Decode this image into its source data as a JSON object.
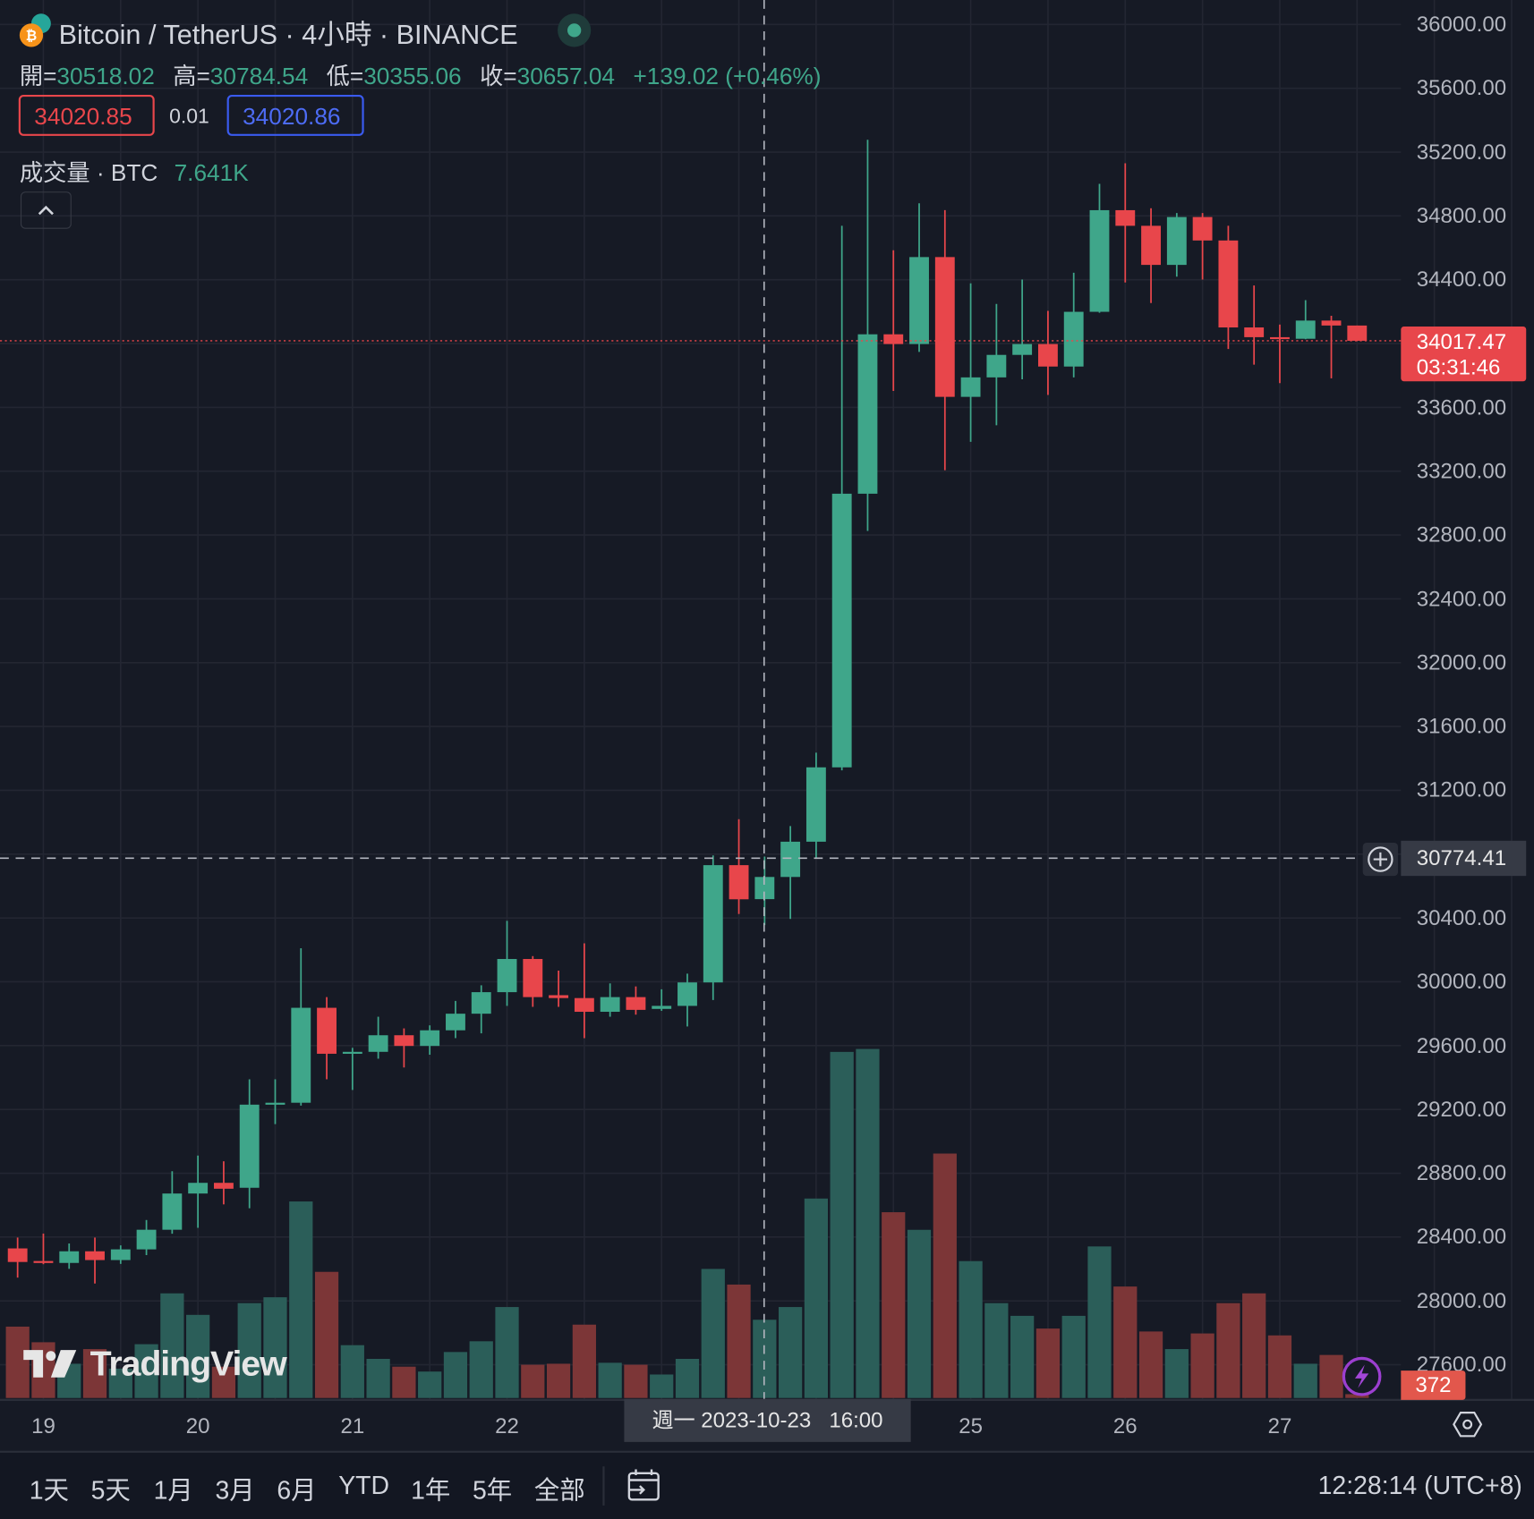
{
  "header": {
    "symbol_title": "Bitcoin / TetherUS · 4小時 · BINANCE",
    "market_status_color": "#26a69a",
    "ohlc": {
      "open_label": "開=",
      "open": "30518.02",
      "high_label": "高=",
      "high": "30784.54",
      "low_label": "低=",
      "low": "30355.06",
      "close_label": "收=",
      "close": "30657.04",
      "change": "+139.02 (+0.46%)"
    },
    "sell_price": "34020.85",
    "spread": "0.01",
    "buy_price": "34020.86",
    "volume_label": "成交量 · BTC",
    "volume_value": "7.641K"
  },
  "colors": {
    "up": "#3fa68a",
    "down": "#e8464b",
    "up_volume": "#2b5e59",
    "down_volume": "#7c3637",
    "background": "#161a25",
    "grid": "#232632",
    "buy": "#3a5bf0",
    "sell": "#e8464b"
  },
  "price_axis": {
    "ticks": [
      "36000.00",
      "35600.00",
      "35200.00",
      "34800.00",
      "34400.00",
      "33600.00",
      "33200.00",
      "32800.00",
      "32400.00",
      "32000.00",
      "31600.00",
      "31200.00",
      "30400.00",
      "30000.00",
      "29600.00",
      "29200.00",
      "28800.00",
      "28400.00",
      "28000.00",
      "27600.00"
    ],
    "last_price": "34017.47",
    "countdown": "03:31:46",
    "crosshair_price": "30774.41",
    "last_volume": "372"
  },
  "time_axis": {
    "labels": [
      {
        "text": "19",
        "index": 1
      },
      {
        "text": "20",
        "index": 7
      },
      {
        "text": "21",
        "index": 13
      },
      {
        "text": "22",
        "index": 19
      },
      {
        "text": "25",
        "index": 37
      },
      {
        "text": "26",
        "index": 43
      },
      {
        "text": "27",
        "index": 49
      }
    ],
    "crosshair_label": "週一 2023-10-23   16:00",
    "crosshair_index": 29
  },
  "chart_data": {
    "type": "candlestick",
    "interval": "4h",
    "first_bar": "2023-10-18 20:00",
    "ylim": [
      27600,
      36000
    ],
    "grid": true,
    "candles": [
      [
        28329,
        28397,
        28146,
        28244
      ],
      [
        28250,
        28422,
        28230,
        28238
      ],
      [
        28238,
        28360,
        28201,
        28311
      ],
      [
        28311,
        28397,
        28109,
        28256
      ],
      [
        28256,
        28348,
        28232,
        28323
      ],
      [
        28323,
        28507,
        28287,
        28446
      ],
      [
        28446,
        28813,
        28421,
        28673
      ],
      [
        28673,
        28911,
        28458,
        28740
      ],
      [
        28740,
        28875,
        28605,
        28703
      ],
      [
        28709,
        29389,
        28581,
        29230
      ],
      [
        29230,
        29389,
        29108,
        29242
      ],
      [
        29242,
        30210,
        29224,
        29837
      ],
      [
        29837,
        29904,
        29389,
        29549
      ],
      [
        29549,
        29586,
        29322,
        29561
      ],
      [
        29561,
        29781,
        29518,
        29665
      ],
      [
        29665,
        29708,
        29463,
        29598
      ],
      [
        29598,
        29727,
        29543,
        29696
      ],
      [
        29696,
        29880,
        29647,
        29800
      ],
      [
        29800,
        29978,
        29677,
        29935
      ],
      [
        29935,
        30382,
        29849,
        30143
      ],
      [
        30143,
        30161,
        29843,
        29904
      ],
      [
        29916,
        30070,
        29843,
        29898
      ],
      [
        29898,
        30241,
        29647,
        29812
      ],
      [
        29812,
        29990,
        29781,
        29904
      ],
      [
        29904,
        29971,
        29794,
        29824
      ],
      [
        29830,
        29953,
        29818,
        29849
      ],
      [
        29849,
        30051,
        29720,
        29996
      ],
      [
        29996,
        30792,
        29886,
        30731
      ],
      [
        30731,
        31019,
        30425,
        30517
      ],
      [
        30518.02,
        30784.54,
        30355.06,
        30657.04
      ],
      [
        30657,
        30976,
        30394,
        30878
      ],
      [
        30878,
        31436,
        30774,
        31344
      ],
      [
        31344,
        34738,
        31325,
        33059
      ],
      [
        33059,
        35277,
        32826,
        34058
      ],
      [
        34058,
        34585,
        33703,
        33997
      ],
      [
        33997,
        34879,
        33948,
        34542
      ],
      [
        34542,
        34836,
        33206,
        33666
      ],
      [
        33666,
        34377,
        33384,
        33788
      ],
      [
        33788,
        34248,
        33488,
        33929
      ],
      [
        33929,
        34401,
        33776,
        33997
      ],
      [
        33997,
        34205,
        33678,
        33856
      ],
      [
        33856,
        34444,
        33788,
        34199
      ],
      [
        34199,
        35001,
        34193,
        34836
      ],
      [
        34836,
        35130,
        34383,
        34738
      ],
      [
        34738,
        34848,
        34254,
        34493
      ],
      [
        34493,
        34818,
        34419,
        34793
      ],
      [
        34793,
        34818,
        34401,
        34646
      ],
      [
        34646,
        34738,
        33966,
        34101
      ],
      [
        34101,
        34364,
        33868,
        34040
      ],
      [
        34040,
        34119,
        33752,
        34030
      ],
      [
        34030,
        34272,
        34027,
        34144
      ],
      [
        34144,
        34174,
        33782,
        34113
      ],
      [
        34113,
        34113,
        34015,
        34017.47
      ]
    ],
    "volumes": [
      6970,
      5444,
      3343,
      4775,
      2865,
      5253,
      10219,
      8118,
      3056,
      9264,
      9837,
      19196,
      12320,
      5157,
      3820,
      3056,
      2579,
      4489,
      5539,
      8882,
      3247,
      3343,
      7163,
      3438,
      3247,
      2292,
      3820,
      12606,
      11078,
      7641,
      8882,
      19482,
      33807,
      34094,
      18145,
      16426,
      23875,
      13370,
      9264,
      8022,
      6781,
      8022,
      14803,
      10887,
      6494,
      4775,
      6303,
      9264,
      10219,
      6112,
      3343,
      4202,
      372
    ]
  },
  "bottom_toolbar": {
    "ranges": [
      "1天",
      "5天",
      "1月",
      "3月",
      "6月",
      "YTD",
      "1年",
      "5年",
      "全部"
    ],
    "clock": "12:28:14 (UTC+8)"
  },
  "watermark": "TradingView"
}
